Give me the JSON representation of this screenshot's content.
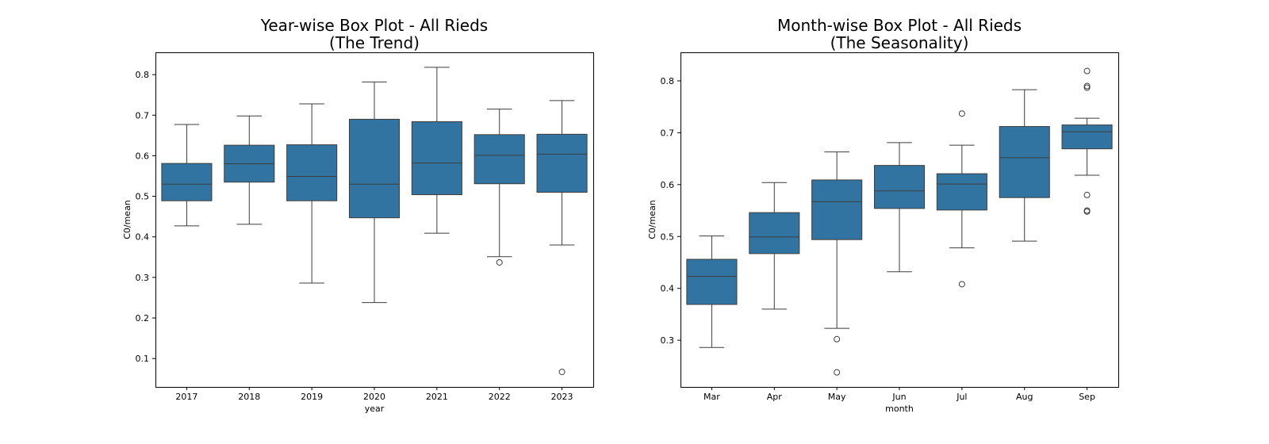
{
  "chart_data": [
    {
      "type": "box",
      "title_line1": "Year-wise Box Plot - All Rieds",
      "title_line2": "(The Trend)",
      "xlabel": "year",
      "ylabel": "C0/mean",
      "ylim": [
        0.03,
        0.855
      ],
      "yticks": [
        0.1,
        0.2,
        0.3,
        0.4,
        0.5,
        0.6,
        0.7,
        0.8
      ],
      "box_color": "#3274a1",
      "categories": [
        "2017",
        "2018",
        "2019",
        "2020",
        "2021",
        "2022",
        "2023"
      ],
      "boxes": [
        {
          "whislo": 0.427,
          "q1": 0.489,
          "med": 0.53,
          "q3": 0.581,
          "whishi": 0.677,
          "fliers": []
        },
        {
          "whislo": 0.431,
          "q1": 0.535,
          "med": 0.58,
          "q3": 0.626,
          "whishi": 0.698,
          "fliers": []
        },
        {
          "whislo": 0.286,
          "q1": 0.489,
          "med": 0.549,
          "q3": 0.627,
          "whishi": 0.728,
          "fliers": []
        },
        {
          "whislo": 0.238,
          "q1": 0.447,
          "med": 0.53,
          "q3": 0.69,
          "whishi": 0.782,
          "fliers": []
        },
        {
          "whislo": 0.409,
          "q1": 0.504,
          "med": 0.582,
          "q3": 0.684,
          "whishi": 0.818,
          "fliers": []
        },
        {
          "whislo": 0.351,
          "q1": 0.531,
          "med": 0.601,
          "q3": 0.652,
          "whishi": 0.715,
          "fliers": [
            0.337
          ]
        },
        {
          "whislo": 0.38,
          "q1": 0.51,
          "med": 0.604,
          "q3": 0.653,
          "whishi": 0.736,
          "fliers": [
            0.067
          ]
        }
      ]
    },
    {
      "type": "box",
      "title_line1": "Month-wise Box Plot - All Rieds",
      "title_line2": "(The Seasonality)",
      "xlabel": "month",
      "ylabel": "C0/mean",
      "ylim": [
        0.21,
        0.855
      ],
      "yticks": [
        0.3,
        0.4,
        0.5,
        0.6,
        0.7,
        0.8
      ],
      "box_color": "#3274a1",
      "categories": [
        "Mar",
        "Apr",
        "May",
        "Jun",
        "Jul",
        "Aug",
        "Sep"
      ],
      "boxes": [
        {
          "whislo": 0.286,
          "q1": 0.369,
          "med": 0.423,
          "q3": 0.456,
          "whishi": 0.501,
          "fliers": []
        },
        {
          "whislo": 0.36,
          "q1": 0.467,
          "med": 0.499,
          "q3": 0.546,
          "whishi": 0.604,
          "fliers": []
        },
        {
          "whislo": 0.323,
          "q1": 0.494,
          "med": 0.567,
          "q3": 0.609,
          "whishi": 0.663,
          "fliers": [
            0.302,
            0.238
          ]
        },
        {
          "whislo": 0.432,
          "q1": 0.554,
          "med": 0.588,
          "q3": 0.637,
          "whishi": 0.681,
          "fliers": []
        },
        {
          "whislo": 0.478,
          "q1": 0.551,
          "med": 0.601,
          "q3": 0.621,
          "whishi": 0.676,
          "fliers": [
            0.737,
            0.408
          ]
        },
        {
          "whislo": 0.491,
          "q1": 0.575,
          "med": 0.652,
          "q3": 0.712,
          "whishi": 0.783,
          "fliers": []
        },
        {
          "whislo": 0.618,
          "q1": 0.669,
          "med": 0.702,
          "q3": 0.715,
          "whishi": 0.728,
          "fliers": [
            0.819,
            0.79,
            0.787,
            0.58,
            0.55,
            0.548
          ]
        }
      ]
    }
  ]
}
